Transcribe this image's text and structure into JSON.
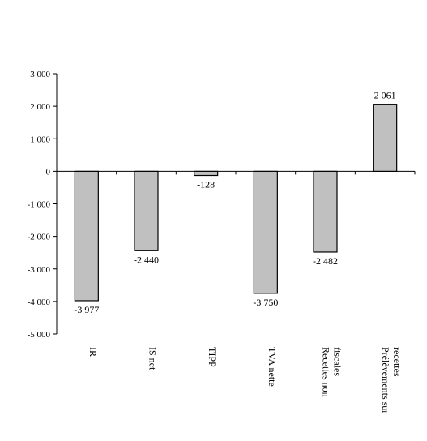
{
  "chart_data": {
    "type": "bar",
    "title": "",
    "xlabel": "",
    "ylabel": "",
    "categories": [
      [
        "IR"
      ],
      [
        "IS net"
      ],
      [
        "TIPP"
      ],
      [
        "TVA nette"
      ],
      [
        "Recettes non",
        "fiscales"
      ],
      [
        "Prélèvements sur",
        "recettes"
      ]
    ],
    "values": [
      -3977,
      -2440,
      -128,
      -3750,
      -2482,
      2061
    ],
    "value_labels": [
      "-3 977",
      "-2 440",
      "-128",
      "-3 750",
      "-2 482",
      "2 061"
    ],
    "ylim": [
      -5000,
      3000
    ],
    "yticks": [
      3000,
      2000,
      1000,
      0,
      -1000,
      -2000,
      -3000,
      -4000,
      -5000
    ],
    "ytick_labels": [
      "3 000",
      "2 000",
      "1 000",
      "0",
      "-1 000",
      "-2 000",
      "-3 000",
      "-4 000",
      "-5 000"
    ],
    "bar_color": "#c0c0c0",
    "bar_edge_color": "#000000",
    "grid": false,
    "legend": "none"
  }
}
